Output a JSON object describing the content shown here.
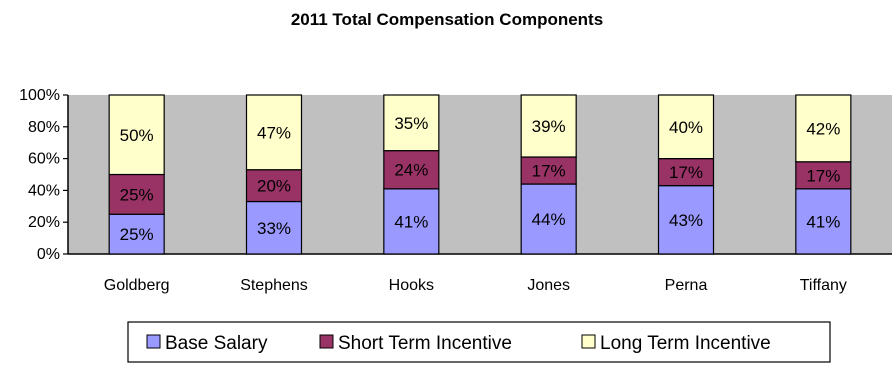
{
  "chart_data": {
    "type": "bar",
    "stacked": true,
    "title": "2011 Total Compensation Components",
    "xlabel": "",
    "ylabel": "",
    "ylim": [
      0,
      100
    ],
    "y_ticks": [
      "0%",
      "20%",
      "40%",
      "60%",
      "80%",
      "100%"
    ],
    "y_tick_values": [
      0,
      20,
      40,
      60,
      80,
      100
    ],
    "categories": [
      "Goldberg",
      "Stephens",
      "Hooks",
      "Jones",
      "Perna",
      "Tiffany"
    ],
    "series": [
      {
        "name": "Base Salary",
        "color": "#9999ff",
        "values": [
          25,
          33,
          41,
          44,
          43,
          41
        ],
        "labels": [
          "25%",
          "33%",
          "41%",
          "44%",
          "43%",
          "41%"
        ]
      },
      {
        "name": "Short Term Incentive",
        "color": "#993366",
        "values": [
          25,
          20,
          24,
          17,
          17,
          17
        ],
        "labels": [
          "25%",
          "20%",
          "24%",
          "17%",
          "17%",
          "17%"
        ]
      },
      {
        "name": "Long Term Incentive",
        "color": "#ffffcc",
        "values": [
          50,
          47,
          35,
          39,
          40,
          42
        ],
        "labels": [
          "50%",
          "47%",
          "35%",
          "39%",
          "40%",
          "42%"
        ]
      }
    ],
    "plot_background": "#c0c0c0",
    "grid": false,
    "legend_position": "bottom"
  }
}
